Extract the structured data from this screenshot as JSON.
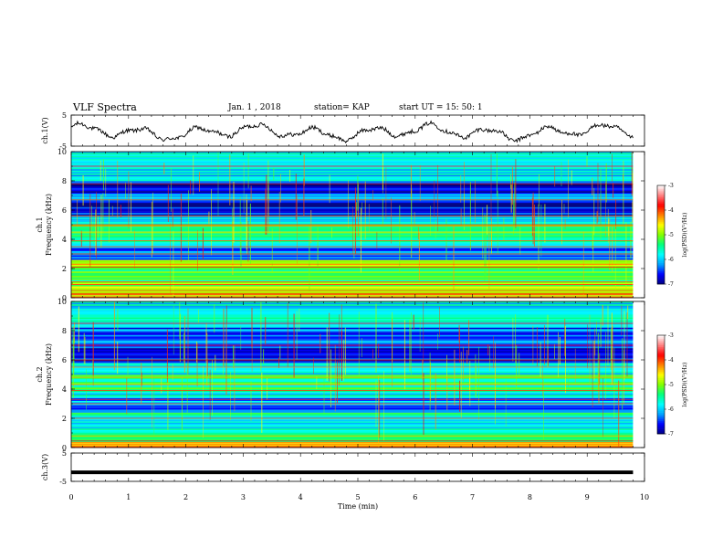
{
  "header": {
    "title": "VLF Spectra",
    "date": "Jan. 1 , 2018",
    "station": "station= KAP",
    "start": "start UT = 15: 50: 1"
  },
  "chart_data": [
    {
      "type": "line",
      "panel": "ch1-voltage",
      "ylabel": "ch.1(V)",
      "ylim": [
        -5,
        5
      ],
      "yticks": [
        "5",
        "-5"
      ],
      "xlim": [
        0,
        10
      ],
      "note_series": "quasi-periodic waveform around 0 V, amplitude about 3 V"
    },
    {
      "type": "heatmap",
      "panel": "ch1-spectrogram",
      "ylabel_top": "ch.1",
      "ylabel": "Frequency (kHz)",
      "ylim": [
        0,
        10
      ],
      "yticks": [
        "0",
        "2",
        "4",
        "6",
        "8",
        "10"
      ],
      "xlim": [
        0,
        9.8
      ],
      "bands_khz": [
        {
          "lo": 0.0,
          "hi": 0.35,
          "level": -4.5
        },
        {
          "lo": 0.35,
          "hi": 1.0,
          "level": -5.0
        },
        {
          "lo": 1.0,
          "hi": 2.0,
          "level": -5.3
        },
        {
          "lo": 2.0,
          "hi": 2.6,
          "level": -5.0
        },
        {
          "lo": 2.6,
          "hi": 3.6,
          "level": -6.2
        },
        {
          "lo": 3.6,
          "hi": 4.0,
          "level": -5.8
        },
        {
          "lo": 4.0,
          "hi": 5.0,
          "level": -5.4
        },
        {
          "lo": 5.0,
          "hi": 5.5,
          "level": -6.0
        },
        {
          "lo": 5.5,
          "hi": 6.5,
          "level": -6.7
        },
        {
          "lo": 6.5,
          "hi": 7.2,
          "level": -6.2
        },
        {
          "lo": 7.2,
          "hi": 8.0,
          "level": -6.6
        },
        {
          "lo": 8.0,
          "hi": 10.0,
          "level": -5.9
        }
      ],
      "lines_khz": [
        0.3,
        0.5,
        0.9,
        1.1,
        2.1,
        2.3,
        3.0,
        3.5,
        3.9,
        4.5,
        4.9,
        5.0,
        5.6,
        6.7,
        7.8,
        9.0
      ]
    },
    {
      "type": "heatmap",
      "panel": "ch2-spectrogram",
      "ylabel_top": "ch.2",
      "ylabel": "Frequency (kHz)",
      "ylim": [
        0,
        10
      ],
      "yticks": [
        "0",
        "2",
        "4",
        "6",
        "8",
        "10"
      ],
      "xlim": [
        0,
        9.8
      ],
      "bands_khz": [
        {
          "lo": 0.0,
          "hi": 0.4,
          "level": -4.3
        },
        {
          "lo": 0.4,
          "hi": 1.0,
          "level": -5.5
        },
        {
          "lo": 1.0,
          "hi": 1.8,
          "level": -5.8
        },
        {
          "lo": 1.8,
          "hi": 2.4,
          "level": -5.6
        },
        {
          "lo": 2.4,
          "hi": 3.4,
          "level": -6.2
        },
        {
          "lo": 3.4,
          "hi": 4.0,
          "level": -5.7
        },
        {
          "lo": 4.0,
          "hi": 5.0,
          "level": -5.4
        },
        {
          "lo": 5.0,
          "hi": 5.8,
          "level": -6.0
        },
        {
          "lo": 5.8,
          "hi": 7.2,
          "level": -6.5
        },
        {
          "lo": 7.2,
          "hi": 8.3,
          "level": -6.3
        },
        {
          "lo": 8.3,
          "hi": 10.0,
          "level": -5.8
        }
      ],
      "lines_khz": [
        0.2,
        0.45,
        0.8,
        2.0,
        3.0,
        3.3,
        3.9,
        4.3,
        4.8,
        5.5,
        6.0,
        7.0,
        8.5
      ]
    },
    {
      "type": "line",
      "panel": "ch3-voltage",
      "ylabel": "ch.3(V)",
      "ylim": [
        -5,
        5
      ],
      "yticks": [
        "5",
        "-5"
      ],
      "xlim": [
        0,
        10
      ],
      "x": [
        0,
        9.8
      ],
      "y": [
        -1.8,
        -1.8
      ]
    }
  ],
  "xaxis": {
    "label": "Time (min)",
    "range": [
      0,
      10
    ],
    "ticks": [
      "0",
      "1",
      "2",
      "3",
      "4",
      "5",
      "6",
      "7",
      "8",
      "9",
      "10"
    ]
  },
  "colorbar": {
    "label": "log(PSD)(V²/Hz)",
    "range": [
      -7,
      -3
    ],
    "ticks": [
      "-3",
      "-4",
      "-5",
      "-6",
      "-7"
    ],
    "colors": [
      "#000080",
      "#0000ff",
      "#00a0ff",
      "#00ffff",
      "#00ff80",
      "#80ff00",
      "#ffff00",
      "#ff8000",
      "#ff0000",
      "#ff8080",
      "#ffffff"
    ]
  }
}
